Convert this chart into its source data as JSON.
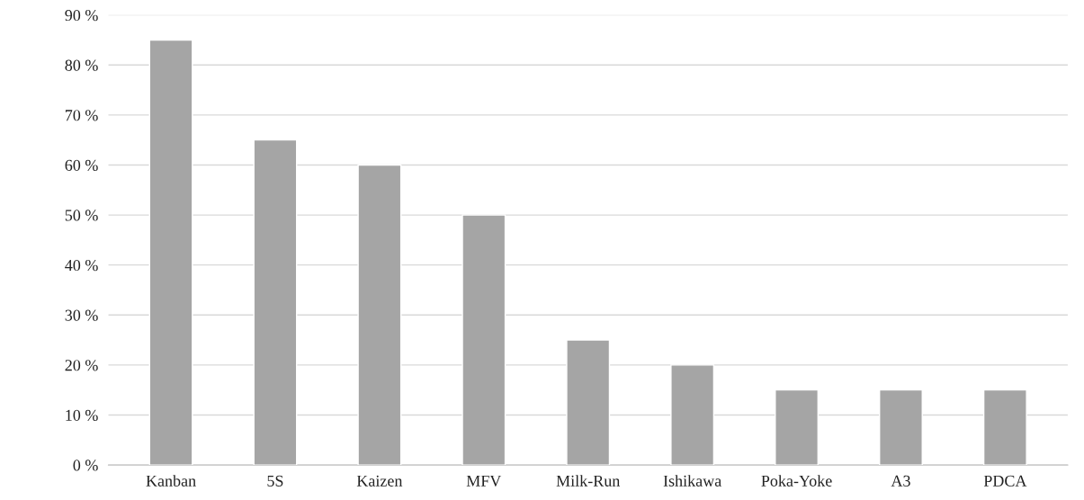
{
  "chart_data": {
    "type": "bar",
    "categories": [
      "Kanban",
      "5S",
      "Kaizen",
      "MFV",
      "Milk-Run",
      "Ishikawa",
      "Poka-Yoke",
      "A3",
      "PDCA"
    ],
    "values": [
      85,
      65,
      60,
      50,
      25,
      20,
      15,
      15,
      15
    ],
    "color": "#a5a5a5",
    "ylim": [
      0,
      90
    ],
    "yticks": [
      {
        "value": 0,
        "label": "0 %"
      },
      {
        "value": 10,
        "label": "10 %"
      },
      {
        "value": 20,
        "label": "20 %"
      },
      {
        "value": 30,
        "label": "30 %"
      },
      {
        "value": 40,
        "label": "40 %"
      },
      {
        "value": 50,
        "label": "50 %"
      },
      {
        "value": 60,
        "label": "60 %"
      },
      {
        "value": 70,
        "label": "70 %"
      },
      {
        "value": 80,
        "label": "80 %"
      },
      {
        "value": 90,
        "label": "90 %"
      }
    ],
    "grid": "y"
  }
}
